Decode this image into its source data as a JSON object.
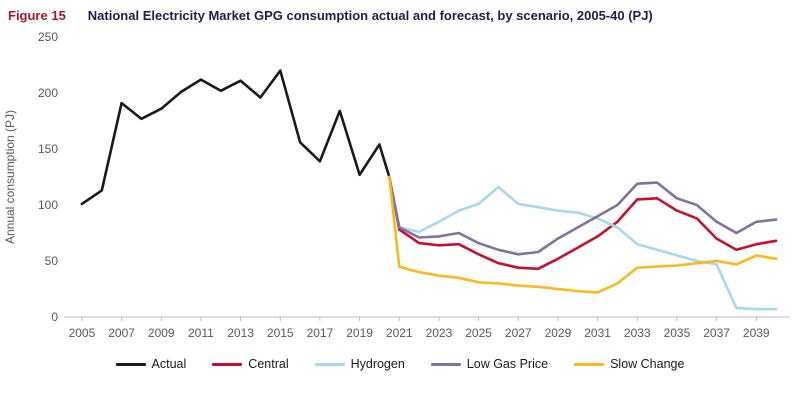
{
  "header": {
    "figure_label": "Figure 15",
    "title": "National Electricity Market GPG consumption actual and forecast, by scenario, 2005-40 (PJ)"
  },
  "chart_data": {
    "type": "line",
    "title": "National Electricity Market GPG consumption actual and forecast, by scenario, 2005-40 (PJ)",
    "ylabel": "Annual consumption (PJ)",
    "xlabel": "",
    "ylim": [
      0,
      250
    ],
    "xlim": [
      2004.5,
      2040.5
    ],
    "y_ticks": [
      0,
      50,
      100,
      150,
      200,
      250
    ],
    "x_ticks": [
      2005,
      2007,
      2009,
      2011,
      2013,
      2015,
      2017,
      2019,
      2021,
      2023,
      2025,
      2027,
      2029,
      2031,
      2033,
      2035,
      2037,
      2039
    ],
    "grid": false,
    "legend_position": "bottom",
    "axis_color": "#bfbfbf",
    "tick_label_color": "#595959",
    "series": [
      {
        "name": "Actual",
        "color": "#1a1a1a",
        "x": [
          2005,
          2006,
          2007,
          2008,
          2009,
          2010,
          2011,
          2012,
          2013,
          2014,
          2015,
          2016,
          2017,
          2018,
          2019,
          2020,
          2020.5
        ],
        "values": [
          101,
          113,
          191,
          177,
          186,
          201,
          212,
          202,
          211,
          196,
          220,
          156,
          139,
          184,
          127,
          154,
          125
        ]
      },
      {
        "name": "Central",
        "color": "#c8102e",
        "x": [
          2020.5,
          2021,
          2022,
          2023,
          2024,
          2025,
          2026,
          2027,
          2028,
          2029,
          2030,
          2031,
          2032,
          2033,
          2034,
          2035,
          2036,
          2037,
          2038,
          2039,
          2040
        ],
        "values": [
          125,
          78,
          66,
          64,
          65,
          56,
          48,
          44,
          43,
          52,
          62,
          72,
          85,
          105,
          106,
          95,
          88,
          70,
          60,
          65,
          68
        ]
      },
      {
        "name": "Hydrogen",
        "color": "#a7d9ed",
        "x": [
          2020.5,
          2021,
          2022,
          2023,
          2024,
          2025,
          2026,
          2027,
          2028,
          2029,
          2030,
          2031,
          2032,
          2033,
          2034,
          2035,
          2036,
          2037,
          2038,
          2039,
          2040
        ],
        "values": [
          125,
          80,
          76,
          85,
          95,
          101,
          116,
          101,
          98,
          95,
          93,
          88,
          80,
          65,
          60,
          55,
          50,
          47,
          8,
          7,
          7
        ]
      },
      {
        "name": "Low Gas Price",
        "color": "#7f739f",
        "x": [
          2020.5,
          2021,
          2022,
          2023,
          2024,
          2025,
          2026,
          2027,
          2028,
          2029,
          2030,
          2031,
          2032,
          2033,
          2034,
          2035,
          2036,
          2037,
          2038,
          2039,
          2040
        ],
        "values": [
          125,
          80,
          71,
          72,
          75,
          66,
          60,
          56,
          58,
          70,
          80,
          90,
          100,
          119,
          120,
          106,
          100,
          85,
          75,
          85,
          87
        ]
      },
      {
        "name": "Slow Change",
        "color": "#ffb81c",
        "x": [
          2020.5,
          2021,
          2022,
          2023,
          2024,
          2025,
          2026,
          2027,
          2028,
          2029,
          2030,
          2031,
          2032,
          2033,
          2034,
          2035,
          2036,
          2037,
          2038,
          2039,
          2040
        ],
        "values": [
          125,
          45,
          40,
          37,
          35,
          31,
          30,
          28,
          27,
          25,
          23,
          22,
          30,
          44,
          45,
          46,
          48,
          50,
          47,
          55,
          52
        ]
      }
    ]
  }
}
